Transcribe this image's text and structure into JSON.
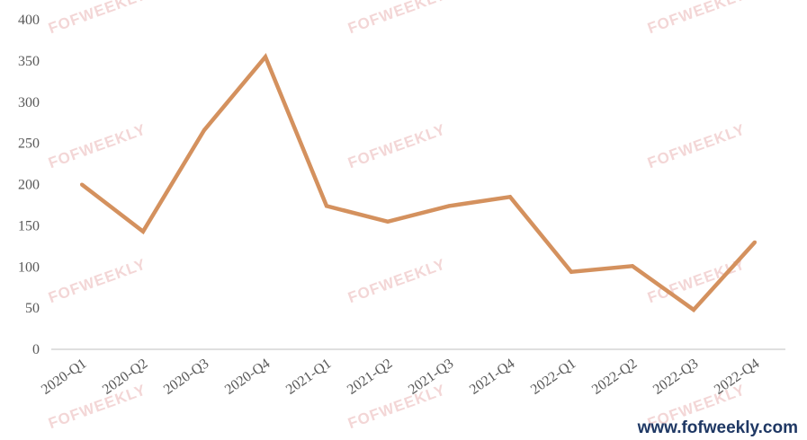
{
  "watermark_text": "FOFWEEKLY",
  "footer": {
    "site": "www.fofweekly.com"
  },
  "colors": {
    "line": "#d4915e",
    "axis": "#bfbfbf",
    "tick_text": "#595959",
    "brand": "#1f3864"
  },
  "chart_data": {
    "type": "line",
    "title": "",
    "xlabel": "",
    "ylabel": "",
    "categories": [
      "2020-Q1",
      "2020-Q2",
      "2020-Q3",
      "2020-Q4",
      "2021-Q1",
      "2021-Q2",
      "2021-Q3",
      "2021-Q4",
      "2022-Q1",
      "2022-Q2",
      "2022-Q3",
      "2022-Q4"
    ],
    "series": [
      {
        "values": [
          200,
          143,
          266,
          355,
          174,
          155,
          174,
          185,
          94,
          101,
          48,
          130
        ]
      }
    ],
    "ylim": [
      0,
      400
    ],
    "yticks": [
      0,
      50,
      100,
      150,
      200,
      250,
      300,
      350,
      400
    ],
    "grid": false,
    "legend": "none"
  }
}
